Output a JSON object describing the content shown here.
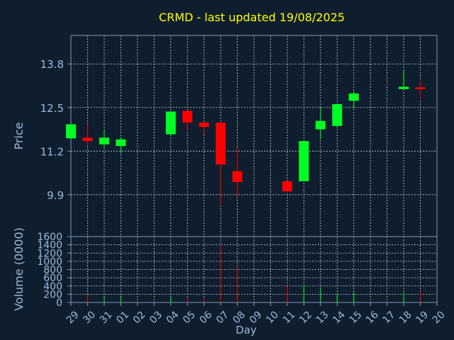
{
  "theme": {
    "background": "#0f1e2e",
    "axis_color": "#7f96b2",
    "text_color": "#9fb8d6",
    "title_color": "#ffff00",
    "up_color": "#00ff22",
    "down_color": "#ff0000"
  },
  "chart_data": [
    {
      "type": "candlestick",
      "title": "CRMD - last updated 19/08/2025",
      "ylabel": "Price",
      "ylim": [
        8.65,
        14.65
      ],
      "yticks": [
        9.9,
        11.2,
        12.5,
        13.8
      ],
      "grid": true,
      "x": [
        "29",
        "30",
        "31",
        "01",
        "02",
        "03",
        "04",
        "05",
        "06",
        "07",
        "08",
        "09",
        "10",
        "11",
        "12",
        "13",
        "14",
        "15",
        "16",
        "17",
        "18",
        "19",
        "20"
      ],
      "candles": [
        {
          "day": "29",
          "open": 11.58,
          "high": 12.0,
          "low": 11.55,
          "close": 12.0
        },
        {
          "day": "30",
          "open": 11.6,
          "high": 12.0,
          "low": 11.38,
          "close": 11.5
        },
        {
          "day": "31",
          "open": 11.4,
          "high": 11.85,
          "low": 11.3,
          "close": 11.6
        },
        {
          "day": "01",
          "open": 11.35,
          "high": 11.62,
          "low": 11.12,
          "close": 11.55
        },
        {
          "day": "04",
          "open": 11.7,
          "high": 12.38,
          "low": 11.7,
          "close": 12.38
        },
        {
          "day": "05",
          "open": 12.4,
          "high": 12.4,
          "low": 11.82,
          "close": 12.05
        },
        {
          "day": "06",
          "open": 12.05,
          "high": 12.05,
          "low": 11.7,
          "close": 11.92
        },
        {
          "day": "07",
          "open": 12.05,
          "high": 12.05,
          "low": 9.6,
          "close": 10.8
        },
        {
          "day": "08",
          "open": 10.6,
          "high": 11.3,
          "low": 9.82,
          "close": 10.28
        },
        {
          "day": "11",
          "open": 10.3,
          "high": 10.3,
          "low": 9.95,
          "close": 10.0
        },
        {
          "day": "12",
          "open": 10.3,
          "high": 11.5,
          "low": 10.3,
          "close": 11.5
        },
        {
          "day": "13",
          "open": 11.85,
          "high": 12.5,
          "low": 11.55,
          "close": 12.1
        },
        {
          "day": "14",
          "open": 11.95,
          "high": 12.6,
          "low": 11.95,
          "close": 12.6
        },
        {
          "day": "15",
          "open": 12.7,
          "high": 12.98,
          "low": 12.48,
          "close": 12.92
        },
        {
          "day": "18",
          "open": 13.05,
          "high": 13.6,
          "low": 13.05,
          "close": 13.12
        },
        {
          "day": "19",
          "open": 13.1,
          "high": 13.3,
          "low": 12.75,
          "close": 13.05
        }
      ]
    },
    {
      "type": "bar",
      "ylabel": "Volume (0000)",
      "xlabel": "Day",
      "ylim": [
        0,
        1600
      ],
      "yticks": [
        0,
        200,
        400,
        600,
        800,
        1000,
        1200,
        1400,
        1600
      ],
      "grid": true,
      "x": [
        "29",
        "30",
        "31",
        "01",
        "02",
        "03",
        "04",
        "05",
        "06",
        "07",
        "08",
        "09",
        "10",
        "11",
        "12",
        "13",
        "14",
        "15",
        "16",
        "17",
        "18",
        "19",
        "20"
      ],
      "bars": [
        {
          "day": "30",
          "value": 180,
          "direction": "down"
        },
        {
          "day": "31",
          "value": 160,
          "direction": "up"
        },
        {
          "day": "01",
          "value": 170,
          "direction": "up"
        },
        {
          "day": "04",
          "value": 170,
          "direction": "up"
        },
        {
          "day": "05",
          "value": 120,
          "direction": "down"
        },
        {
          "day": "06",
          "value": 110,
          "direction": "down"
        },
        {
          "day": "07",
          "value": 1400,
          "direction": "down"
        },
        {
          "day": "08",
          "value": 860,
          "direction": "down"
        },
        {
          "day": "11",
          "value": 400,
          "direction": "down"
        },
        {
          "day": "12",
          "value": 420,
          "direction": "up"
        },
        {
          "day": "13",
          "value": 370,
          "direction": "up"
        },
        {
          "day": "14",
          "value": 220,
          "direction": "up"
        },
        {
          "day": "15",
          "value": 250,
          "direction": "up"
        },
        {
          "day": "18",
          "value": 240,
          "direction": "up"
        },
        {
          "day": "19",
          "value": 270,
          "direction": "down"
        }
      ]
    }
  ]
}
